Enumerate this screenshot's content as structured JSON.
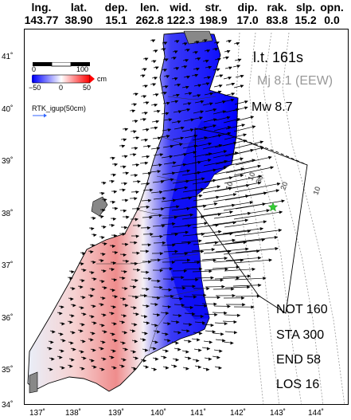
{
  "header": {
    "columns": [
      {
        "name": "lng.",
        "value": "143.77"
      },
      {
        "name": "lat.",
        "value": "38.90"
      },
      {
        "name": "dep.",
        "value": "15.1"
      },
      {
        "name": "len.",
        "value": "262.8"
      },
      {
        "name": "wid.",
        "value": "122.3"
      },
      {
        "name": "str.",
        "value": "198.9"
      },
      {
        "name": "dip.",
        "value": "17.0"
      },
      {
        "name": "rak.",
        "value": "83.8"
      },
      {
        "name": "slp.",
        "value": "15.2"
      },
      {
        "name": "opn.",
        "value": "0.0"
      }
    ]
  },
  "map": {
    "lat_ticks": [
      "41˚",
      "40˚",
      "39˚",
      "38˚",
      "37˚",
      "36˚",
      "35˚",
      "34˚"
    ],
    "lon_ticks": [
      "137˚",
      "138˚",
      "139˚",
      "140˚",
      "141˚",
      "142˚",
      "143˚",
      "144˚"
    ],
    "lat_range": [
      34,
      41.4
    ],
    "lon_range": [
      136.6,
      144.6
    ],
    "colorbar": {
      "unit": "cm",
      "min_label": "−50",
      "zero_label": "0",
      "max_label": "50",
      "scale_zero": "0",
      "scale_max": "100",
      "colors": {
        "low": "#0000ff",
        "mid": "#ffffff",
        "high": "#ff0000"
      }
    },
    "vector_legend": "RTK_igup(50cm)",
    "vector_color": "#3366ff",
    "epicenter_color": "#33cc33",
    "contour_labels": [
      "10",
      "10",
      "20",
      "30",
      "10"
    ]
  },
  "info": {
    "elapsed": "l.t. 161s",
    "eew": "Mj 8.1 (EEW)",
    "mw": "Mw 8.7"
  },
  "stats": {
    "not": "NOT 160",
    "sta": "STA 300",
    "end": "END 58",
    "los": "LOS 16"
  }
}
